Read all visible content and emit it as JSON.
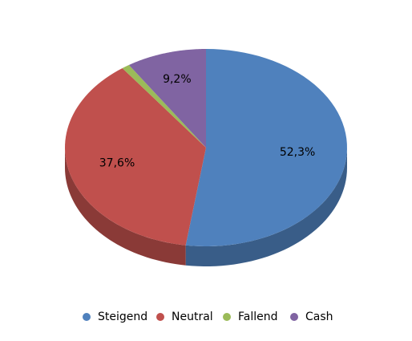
{
  "chart_data": {
    "type": "pie",
    "categories": [
      "Steigend",
      "Neutral",
      "Fallend",
      "Cash"
    ],
    "values": [
      52.3,
      37.6,
      0.9,
      9.2
    ],
    "value_labels": [
      "52,3%",
      "37,6%",
      null,
      "9,2%"
    ],
    "colors": [
      "#4f81bd",
      "#c0504d",
      "#9bbb59",
      "#8064a2"
    ],
    "legend": "bottom"
  }
}
